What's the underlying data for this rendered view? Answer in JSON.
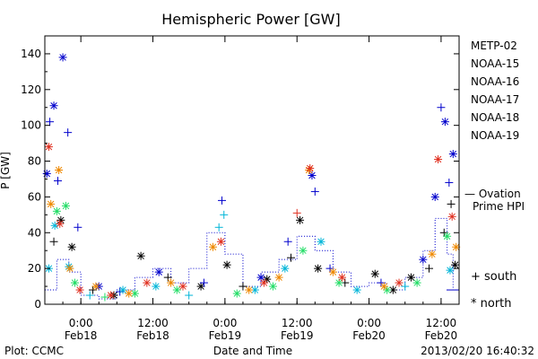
{
  "chart_data": {
    "type": "scatter",
    "title": "Hemispheric Power [GW]",
    "ylabel": "P [GW]",
    "xlabel": "Date and Time",
    "ylim": [
      0,
      150
    ],
    "xlim": [
      "2013-02-17 18:00",
      "2013-02-20 15:00"
    ],
    "yticks": [
      0,
      20,
      40,
      60,
      80,
      100,
      120,
      140
    ],
    "xticks": [
      {
        "time": "2013-02-18 00:00",
        "hour": "0:00",
        "date": "Feb18"
      },
      {
        "time": "2013-02-18 12:00",
        "hour": "12:00",
        "date": "Feb18"
      },
      {
        "time": "2013-02-19 00:00",
        "hour": "0:00",
        "date": "Feb19"
      },
      {
        "time": "2013-02-19 12:00",
        "hour": "12:00",
        "date": "Feb19"
      },
      {
        "time": "2013-02-20 00:00",
        "hour": "0:00",
        "date": "Feb20"
      },
      {
        "time": "2013-02-20 12:00",
        "hour": "12:00",
        "date": "Feb20"
      }
    ],
    "series": [
      {
        "name": "METP-02",
        "color": "#000000",
        "points": [
          [
            "2013-02-17 19:30",
            35,
            "+"
          ],
          [
            "2013-02-17 20:40",
            47,
            "*"
          ],
          [
            "2013-02-17 22:30",
            32,
            "*"
          ],
          [
            "2013-02-18 02:00",
            8,
            "+"
          ],
          [
            "2013-02-18 05:30",
            5,
            "*"
          ],
          [
            "2013-02-18 10:00",
            27,
            "*"
          ],
          [
            "2013-02-18 14:30",
            15,
            "+"
          ],
          [
            "2013-02-18 20:00",
            10,
            "*"
          ],
          [
            "2013-02-19 00:20",
            22,
            "*"
          ],
          [
            "2013-02-19 03:00",
            10,
            "+"
          ],
          [
            "2013-02-19 07:00",
            14,
            "*"
          ],
          [
            "2013-02-19 11:00",
            26,
            "+"
          ],
          [
            "2013-02-19 12:30",
            47,
            "*"
          ],
          [
            "2013-02-19 15:30",
            20,
            "*"
          ],
          [
            "2013-02-19 20:00",
            12,
            "+"
          ],
          [
            "2013-02-20 01:00",
            17,
            "*"
          ],
          [
            "2013-02-20 04:00",
            8,
            "*"
          ],
          [
            "2013-02-20 07:00",
            15,
            "*"
          ],
          [
            "2013-02-20 10:00",
            20,
            "+"
          ],
          [
            "2013-02-20 12:30",
            40,
            "+"
          ],
          [
            "2013-02-20 13:40",
            56,
            "+"
          ],
          [
            "2013-02-20 14:20",
            22,
            "*"
          ]
        ]
      },
      {
        "name": "NOAA-15",
        "color": "#0000cc",
        "points": [
          [
            "2013-02-17 18:20",
            73,
            "*"
          ],
          [
            "2013-02-17 18:50",
            102,
            "+"
          ],
          [
            "2013-02-17 19:30",
            111,
            "*"
          ],
          [
            "2013-02-17 20:10",
            69,
            "+"
          ],
          [
            "2013-02-17 21:00",
            138,
            "*"
          ],
          [
            "2013-02-17 21:50",
            96,
            "+"
          ],
          [
            "2013-02-17 23:30",
            43,
            "+"
          ],
          [
            "2013-02-18 03:00",
            10,
            "*"
          ],
          [
            "2013-02-18 06:30",
            7,
            "+"
          ],
          [
            "2013-02-18 13:00",
            18,
            "*"
          ],
          [
            "2013-02-18 20:30",
            12,
            "+"
          ],
          [
            "2013-02-18 23:30",
            58,
            "+"
          ],
          [
            "2013-02-19 06:00",
            15,
            "*"
          ],
          [
            "2013-02-19 10:30",
            35,
            "+"
          ],
          [
            "2013-02-19 14:30",
            72,
            "*"
          ],
          [
            "2013-02-19 15:00",
            63,
            "+"
          ],
          [
            "2013-02-19 17:30",
            20,
            "+"
          ],
          [
            "2013-02-20 02:00",
            12,
            "+"
          ],
          [
            "2013-02-20 09:00",
            25,
            "*"
          ],
          [
            "2013-02-20 11:00",
            60,
            "*"
          ],
          [
            "2013-02-20 12:00",
            110,
            "+"
          ],
          [
            "2013-02-20 12:40",
            102,
            "*"
          ],
          [
            "2013-02-20 13:20",
            68,
            "+"
          ],
          [
            "2013-02-20 14:00",
            84,
            "*"
          ]
        ]
      },
      {
        "name": "NOAA-16",
        "color": "#00b5d8",
        "points": [
          [
            "2013-02-17 18:40",
            20,
            "*"
          ],
          [
            "2013-02-17 19:40",
            44,
            "*"
          ],
          [
            "2013-02-17 22:00",
            21,
            "*"
          ],
          [
            "2013-02-18 01:30",
            5,
            "+"
          ],
          [
            "2013-02-18 07:00",
            8,
            "*"
          ],
          [
            "2013-02-18 12:30",
            10,
            "*"
          ],
          [
            "2013-02-18 18:00",
            5,
            "+"
          ],
          [
            "2013-02-18 23:00",
            43,
            "+"
          ],
          [
            "2013-02-18 23:50",
            50,
            "+"
          ],
          [
            "2013-02-19 05:00",
            8,
            "*"
          ],
          [
            "2013-02-19 10:00",
            20,
            "*"
          ],
          [
            "2013-02-19 16:00",
            35,
            "*"
          ],
          [
            "2013-02-19 22:00",
            8,
            "*"
          ],
          [
            "2013-02-20 06:00",
            10,
            "+"
          ],
          [
            "2013-02-20 13:30",
            19,
            "*"
          ]
        ]
      },
      {
        "name": "NOAA-17",
        "color": "#22dd66",
        "points": [
          [
            "2013-02-17 20:00",
            52,
            "*"
          ],
          [
            "2013-02-17 21:30",
            55,
            "*"
          ],
          [
            "2013-02-17 23:00",
            12,
            "*"
          ],
          [
            "2013-02-18 04:00",
            4,
            "+"
          ],
          [
            "2013-02-18 09:00",
            6,
            "*"
          ],
          [
            "2013-02-18 16:00",
            8,
            "*"
          ],
          [
            "2013-02-19 02:00",
            6,
            "*"
          ],
          [
            "2013-02-19 08:00",
            10,
            "*"
          ],
          [
            "2013-02-19 13:00",
            30,
            "*"
          ],
          [
            "2013-02-19 19:00",
            12,
            "*"
          ],
          [
            "2013-02-20 03:00",
            8,
            "*"
          ],
          [
            "2013-02-20 08:00",
            12,
            "*"
          ],
          [
            "2013-02-20 13:00",
            38,
            "*"
          ]
        ]
      },
      {
        "name": "NOAA-18",
        "color": "#ee8800",
        "points": [
          [
            "2013-02-17 19:00",
            56,
            "*"
          ],
          [
            "2013-02-17 20:20",
            75,
            "*"
          ],
          [
            "2013-02-17 22:10",
            20,
            "*"
          ],
          [
            "2013-02-18 02:30",
            10,
            "*"
          ],
          [
            "2013-02-18 08:00",
            6,
            "*"
          ],
          [
            "2013-02-18 15:00",
            12,
            "*"
          ],
          [
            "2013-02-18 22:00",
            32,
            "*"
          ],
          [
            "2013-02-19 04:00",
            8,
            "*"
          ],
          [
            "2013-02-19 09:00",
            15,
            "*"
          ],
          [
            "2013-02-19 14:00",
            75,
            "*"
          ],
          [
            "2013-02-19 18:00",
            18,
            "*"
          ],
          [
            "2013-02-20 02:30",
            10,
            "*"
          ],
          [
            "2013-02-20 10:30",
            28,
            "*"
          ],
          [
            "2013-02-20 14:30",
            32,
            "*"
          ]
        ]
      },
      {
        "name": "NOAA-19",
        "color": "#e03020",
        "points": [
          [
            "2013-02-17 18:40",
            88,
            "*"
          ],
          [
            "2013-02-17 20:30",
            45,
            "*"
          ],
          [
            "2013-02-17 23:50",
            8,
            "*"
          ],
          [
            "2013-02-18 05:00",
            5,
            "*"
          ],
          [
            "2013-02-18 11:00",
            12,
            "*"
          ],
          [
            "2013-02-18 17:00",
            10,
            "*"
          ],
          [
            "2013-02-18 23:20",
            35,
            "*"
          ],
          [
            "2013-02-19 06:30",
            12,
            "*"
          ],
          [
            "2013-02-19 12:00",
            51,
            "+"
          ],
          [
            "2013-02-19 14:10",
            76,
            "*"
          ],
          [
            "2013-02-19 19:30",
            15,
            "*"
          ],
          [
            "2013-02-20 05:00",
            12,
            "*"
          ],
          [
            "2013-02-20 11:30",
            81,
            "*"
          ],
          [
            "2013-02-20 13:50",
            49,
            "*"
          ]
        ]
      }
    ],
    "ovation_line": {
      "name": "— Ovation Prime HPI",
      "color": "#0000cc",
      "style": "dotted-step",
      "points": [
        [
          "2013-02-17 18:00",
          8
        ],
        [
          "2013-02-17 20:00",
          25
        ],
        [
          "2013-02-17 22:00",
          18
        ],
        [
          "2013-02-18 00:00",
          5
        ],
        [
          "2013-02-18 03:00",
          3
        ],
        [
          "2013-02-18 06:00",
          8
        ],
        [
          "2013-02-18 09:00",
          15
        ],
        [
          "2013-02-18 12:00",
          20
        ],
        [
          "2013-02-18 15:00",
          12
        ],
        [
          "2013-02-18 18:00",
          20
        ],
        [
          "2013-02-18 21:00",
          40
        ],
        [
          "2013-02-19 00:00",
          28
        ],
        [
          "2013-02-19 03:00",
          10
        ],
        [
          "2013-02-19 06:00",
          18
        ],
        [
          "2013-02-19 09:00",
          25
        ],
        [
          "2013-02-19 12:00",
          38
        ],
        [
          "2013-02-19 15:00",
          30
        ],
        [
          "2013-02-19 18:00",
          18
        ],
        [
          "2013-02-19 21:00",
          10
        ],
        [
          "2013-02-20 00:00",
          12
        ],
        [
          "2013-02-20 03:00",
          8
        ],
        [
          "2013-02-20 06:00",
          15
        ],
        [
          "2013-02-20 09:00",
          30
        ],
        [
          "2013-02-20 11:00",
          48
        ],
        [
          "2013-02-20 13:00",
          28
        ],
        [
          "2013-02-20 14:00",
          8
        ]
      ]
    },
    "legend_position": "right",
    "legend_symbols": [
      {
        "glyph": "+",
        "label": "south"
      },
      {
        "glyph": "*",
        "label": "north"
      }
    ]
  },
  "footer": {
    "plot_credit": "Plot: CCMC",
    "timestamp": "2013/02/20 16:40:32"
  }
}
